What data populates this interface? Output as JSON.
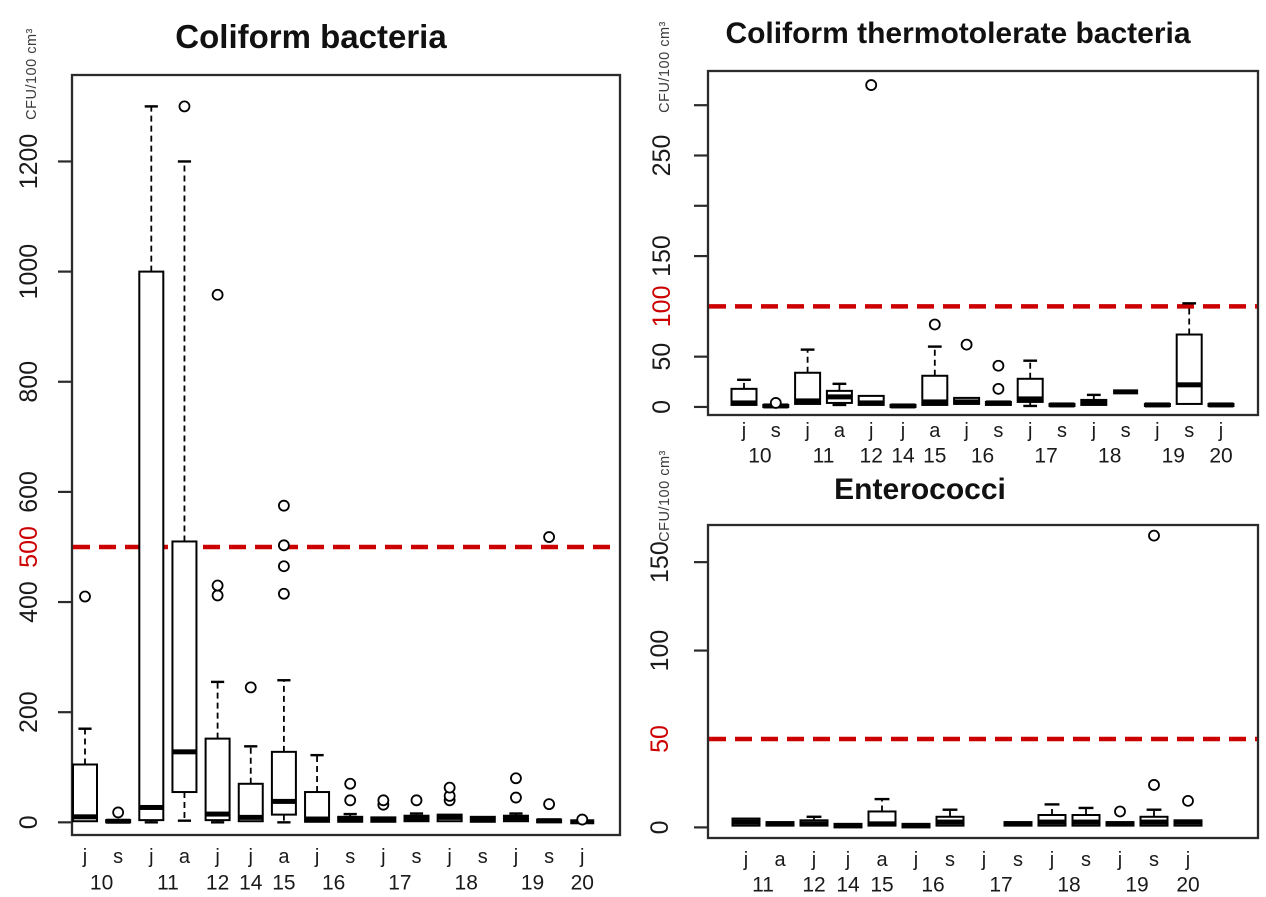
{
  "styles": {
    "threshold_red": "#cc0000",
    "box_stroke": "#000000",
    "text_color": "#1a1a1a",
    "axis_color": "#2b2b2b"
  },
  "chart_data": [
    {
      "type": "boxplot",
      "title": "Coliform bacteria",
      "ylabel": "CFU/100 cm³",
      "threshold": 500,
      "ylim": [
        -23,
        1357
      ],
      "y_ticks": [
        {
          "value": 0,
          "label": "0"
        },
        {
          "value": 200,
          "label": "200"
        },
        {
          "value": 400,
          "label": "400"
        },
        {
          "value": 500,
          "label": "500",
          "red": true
        },
        {
          "value": 600,
          "label": "600"
        },
        {
          "value": 800,
          "label": "800"
        },
        {
          "value": 1000,
          "label": "1000"
        },
        {
          "value": 1200,
          "label": "1200"
        }
      ],
      "groups": [
        {
          "month": "j",
          "year": "10",
          "low": 0,
          "q1": 2,
          "median": 10,
          "q3": 105,
          "high": 170,
          "outliers": [
            410
          ]
        },
        {
          "month": "s",
          "year": "10",
          "low": 0,
          "q1": 0,
          "median": 2,
          "q3": 4,
          "high": 4,
          "outliers": [
            18
          ]
        },
        {
          "month": "j",
          "year": "11",
          "low": 0,
          "q1": 4,
          "median": 27,
          "q3": 1000,
          "high": 1300,
          "outliers": []
        },
        {
          "month": "a",
          "year": "11",
          "low": 3,
          "q1": 55,
          "median": 128,
          "q3": 510,
          "high": 1200,
          "outliers": [
            1300
          ]
        },
        {
          "month": "j",
          "year": "12",
          "low": 0,
          "q1": 4,
          "median": 15,
          "q3": 152,
          "high": 255,
          "outliers": [
            412,
            430,
            958
          ]
        },
        {
          "month": "j",
          "year": "14",
          "low": 0,
          "q1": 2,
          "median": 9,
          "q3": 70,
          "high": 138,
          "outliers": [
            245
          ]
        },
        {
          "month": "a",
          "year": "15",
          "low": 0,
          "q1": 14,
          "median": 38,
          "q3": 128,
          "high": 258,
          "outliers": [
            415,
            465,
            503,
            575
          ]
        },
        {
          "month": "j",
          "year": "16",
          "low": 0,
          "q1": 1,
          "median": 6,
          "q3": 55,
          "high": 122,
          "outliers": []
        },
        {
          "month": "s",
          "year": "16",
          "low": 0,
          "q1": 1,
          "median": 6,
          "q3": 10,
          "high": 15,
          "outliers": [
            40,
            70
          ]
        },
        {
          "month": "j",
          "year": "17",
          "low": 0,
          "q1": 1,
          "median": 5,
          "q3": 9,
          "high": 9,
          "outliers": [
            32,
            40
          ]
        },
        {
          "month": "s",
          "year": "17",
          "low": 0,
          "q1": 2,
          "median": 7,
          "q3": 12,
          "high": 16,
          "outliers": [
            40
          ]
        },
        {
          "month": "j",
          "year": "18",
          "low": 0,
          "q1": 2,
          "median": 9,
          "q3": 14,
          "high": 17,
          "outliers": [
            40,
            48,
            63
          ]
        },
        {
          "month": "s",
          "year": "18",
          "low": 0,
          "q1": 1,
          "median": 5,
          "q3": 10,
          "high": 11,
          "outliers": []
        },
        {
          "month": "j",
          "year": "19",
          "low": 0,
          "q1": 2,
          "median": 8,
          "q3": 12,
          "high": 16,
          "outliers": [
            45,
            80
          ]
        },
        {
          "month": "s",
          "year": "19",
          "low": 0,
          "q1": 0,
          "median": 3,
          "q3": 5,
          "high": 7,
          "outliers": [
            33,
            518
          ]
        },
        {
          "month": "j",
          "year": "20",
          "low": 0,
          "q1": 0,
          "median": 1,
          "q3": 2,
          "high": 3,
          "outliers": [
            5
          ]
        }
      ],
      "year_labels": [
        {
          "label": "10",
          "from": 0,
          "to": 1
        },
        {
          "label": "11",
          "from": 2,
          "to": 3
        },
        {
          "label": "12",
          "from": 4,
          "to": 4
        },
        {
          "label": "14",
          "from": 5,
          "to": 5
        },
        {
          "label": "15",
          "from": 6,
          "to": 6
        },
        {
          "label": "16",
          "from": 7,
          "to": 8
        },
        {
          "label": "17",
          "from": 9,
          "to": 10
        },
        {
          "label": "18",
          "from": 11,
          "to": 12
        },
        {
          "label": "19",
          "from": 13,
          "to": 14
        },
        {
          "label": "20",
          "from": 15,
          "to": 15
        }
      ]
    },
    {
      "type": "boxplot",
      "title": "Coliform thermotolerate bacteria",
      "ylabel": "CFU/100 cm³",
      "threshold": 100,
      "ylim": [
        -8,
        334
      ],
      "y_ticks": [
        {
          "value": 0,
          "label": "0"
        },
        {
          "value": 50,
          "label": "50"
        },
        {
          "value": 100,
          "label": "100",
          "red": true
        },
        {
          "value": 150,
          "label": "150"
        },
        {
          "value": 200,
          "label": ""
        },
        {
          "value": 250,
          "label": "250"
        },
        {
          "value": 300,
          "label": ""
        }
      ],
      "groups": [
        {
          "month": "j",
          "year": "10",
          "low": 1,
          "q1": 2,
          "median": 4,
          "q3": 18,
          "high": 27,
          "outliers": []
        },
        {
          "month": "s",
          "year": "10",
          "low": 0,
          "q1": 0,
          "median": 1,
          "q3": 2,
          "high": 2,
          "outliers": [
            4
          ]
        },
        {
          "month": "j",
          "year": "11",
          "low": 2,
          "q1": 3,
          "median": 6,
          "q3": 34,
          "high": 57,
          "outliers": []
        },
        {
          "month": "a",
          "year": "11",
          "low": 2,
          "q1": 4,
          "median": 10,
          "q3": 16,
          "high": 23,
          "outliers": []
        },
        {
          "month": "j",
          "year": "12",
          "low": 1,
          "q1": 2,
          "median": 4,
          "q3": 11,
          "high": 11,
          "outliers": [
            320
          ]
        },
        {
          "month": "j",
          "year": "14",
          "low": 0,
          "q1": 0,
          "median": 1,
          "q3": 2,
          "high": 2,
          "outliers": []
        },
        {
          "month": "a",
          "year": "15",
          "low": 1,
          "q1": 2,
          "median": 5,
          "q3": 31,
          "high": 60,
          "outliers": [
            82
          ]
        },
        {
          "month": "j",
          "year": "16",
          "low": 2,
          "q1": 3,
          "median": 5,
          "q3": 9,
          "high": 9,
          "outliers": [
            62
          ]
        },
        {
          "month": "s",
          "year": "16",
          "low": 1,
          "q1": 2,
          "median": 4,
          "q3": 5,
          "high": 6,
          "outliers": [
            18,
            41
          ]
        },
        {
          "month": "j",
          "year": "17",
          "low": 1,
          "q1": 5,
          "median": 8,
          "q3": 28,
          "high": 46,
          "outliers": []
        },
        {
          "month": "s",
          "year": "17",
          "low": 0,
          "q1": 1,
          "median": 2,
          "q3": 3,
          "high": 3,
          "outliers": []
        },
        {
          "month": "j",
          "year": "18",
          "low": 1,
          "q1": 2,
          "median": 4,
          "q3": 7,
          "high": 12,
          "outliers": []
        },
        {
          "month": "s",
          "year": "18",
          "low": 15,
          "q1": 15,
          "median": 15,
          "q3": 15,
          "high": 15,
          "outliers": []
        },
        {
          "month": "j",
          "year": "19",
          "low": 1,
          "q1": 1,
          "median": 2,
          "q3": 3,
          "high": 3,
          "outliers": []
        },
        {
          "month": "s",
          "year": "19",
          "low": 2,
          "q1": 3,
          "median": 22,
          "q3": 72,
          "high": 103,
          "outliers": []
        },
        {
          "month": "j",
          "year": "20",
          "low": 1,
          "q1": 1,
          "median": 2,
          "q3": 3,
          "high": 3,
          "outliers": []
        }
      ],
      "year_labels": [
        {
          "label": "10",
          "from": 0,
          "to": 1
        },
        {
          "label": "11",
          "from": 2,
          "to": 3
        },
        {
          "label": "12",
          "from": 4,
          "to": 4
        },
        {
          "label": "14",
          "from": 5,
          "to": 5
        },
        {
          "label": "15",
          "from": 6,
          "to": 6
        },
        {
          "label": "16",
          "from": 7,
          "to": 8
        },
        {
          "label": "17",
          "from": 9,
          "to": 10
        },
        {
          "label": "18",
          "from": 11,
          "to": 12
        },
        {
          "label": "19",
          "from": 13,
          "to": 14
        },
        {
          "label": "20",
          "from": 15,
          "to": 15
        }
      ]
    },
    {
      "type": "boxplot",
      "title": "Enterococci",
      "ylabel": "CFU/100 cm³",
      "threshold": 50,
      "ylim": [
        -6,
        171
      ],
      "y_ticks": [
        {
          "value": 0,
          "label": "0"
        },
        {
          "value": 50,
          "label": "50",
          "red": true
        },
        {
          "value": 100,
          "label": "100"
        },
        {
          "value": 150,
          "label": "150"
        }
      ],
      "groups": [
        {
          "month": "j",
          "year": "11",
          "low": 0,
          "q1": 1,
          "median": 3,
          "q3": 5,
          "high": 6,
          "outliers": []
        },
        {
          "month": "a",
          "year": "11",
          "low": 0,
          "q1": 1,
          "median": 2,
          "q3": 3,
          "high": 3,
          "outliers": []
        },
        {
          "month": "j",
          "year": "12",
          "low": 0,
          "q1": 1,
          "median": 2,
          "q3": 4,
          "high": 6,
          "outliers": []
        },
        {
          "month": "j",
          "year": "14",
          "low": 0,
          "q1": 0,
          "median": 1,
          "q3": 2,
          "high": 2,
          "outliers": []
        },
        {
          "month": "a",
          "year": "15",
          "low": 0,
          "q1": 1,
          "median": 2,
          "q3": 9,
          "high": 16,
          "outliers": []
        },
        {
          "month": "j",
          "year": "16",
          "low": 0,
          "q1": 0,
          "median": 1,
          "q3": 2,
          "high": 2,
          "outliers": []
        },
        {
          "month": "s",
          "year": "16",
          "low": 0,
          "q1": 1,
          "median": 3,
          "q3": 6,
          "high": 10,
          "outliers": []
        },
        {
          "month": "j",
          "year": "17",
          "empty": true
        },
        {
          "month": "s",
          "year": "17",
          "low": 0,
          "q1": 1,
          "median": 2,
          "q3": 3,
          "high": 3,
          "outliers": []
        },
        {
          "month": "j",
          "year": "18",
          "low": 0,
          "q1": 1,
          "median": 3,
          "q3": 7,
          "high": 13,
          "outliers": []
        },
        {
          "month": "s",
          "year": "18",
          "low": 0,
          "q1": 1,
          "median": 3,
          "q3": 7,
          "high": 11,
          "outliers": []
        },
        {
          "month": "j",
          "year": "19",
          "low": 0,
          "q1": 1,
          "median": 2,
          "q3": 3,
          "high": 3,
          "outliers": [
            9
          ]
        },
        {
          "month": "s",
          "year": "19",
          "low": 0,
          "q1": 1,
          "median": 3,
          "q3": 6,
          "high": 10,
          "outliers": [
            24,
            165
          ]
        },
        {
          "month": "j",
          "year": "20",
          "low": 0,
          "q1": 1,
          "median": 3,
          "q3": 4,
          "high": 4,
          "outliers": [
            15
          ]
        }
      ],
      "year_labels": [
        {
          "label": "11",
          "from": 0,
          "to": 1
        },
        {
          "label": "12",
          "from": 2,
          "to": 2
        },
        {
          "label": "14",
          "from": 3,
          "to": 3
        },
        {
          "label": "15",
          "from": 4,
          "to": 4
        },
        {
          "label": "16",
          "from": 5,
          "to": 6
        },
        {
          "label": "17",
          "from": 7,
          "to": 8
        },
        {
          "label": "18",
          "from": 9,
          "to": 10
        },
        {
          "label": "19",
          "from": 11,
          "to": 12
        },
        {
          "label": "20",
          "from": 13,
          "to": 13
        }
      ]
    }
  ]
}
